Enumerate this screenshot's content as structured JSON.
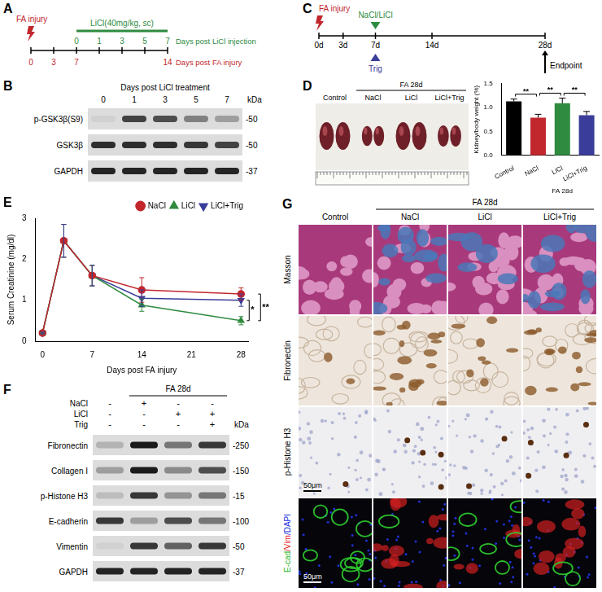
{
  "panels": {
    "A": {
      "letter": "A",
      "injury": "FA injury",
      "treatment": "LiCl(40mg/kg, sc)",
      "treatment_days": [
        "0",
        "1",
        "3",
        "5",
        "7"
      ],
      "treatment_axis": "Days post LiCl injection",
      "injury_days": [
        "0",
        "3",
        "7",
        "14"
      ],
      "injury_axis": "Days post FA injury"
    },
    "B": {
      "letter": "B",
      "header": "Days post LiCl treatment",
      "lanes": [
        "0",
        "1",
        "3",
        "5",
        "7"
      ],
      "unit": "kDa",
      "rows": [
        {
          "name": "p-GSK3β(S9)",
          "kda": "-50",
          "bands": [
            0.05,
            0.75,
            0.7,
            0.45,
            0.3
          ]
        },
        {
          "name": "GSK3β",
          "kda": "-50",
          "bands": [
            0.85,
            0.85,
            0.85,
            0.8,
            0.75
          ]
        },
        {
          "name": "GAPDH",
          "kda": "-37",
          "bands": [
            0.9,
            0.9,
            0.9,
            0.9,
            0.9
          ]
        }
      ]
    },
    "C": {
      "letter": "C",
      "injury": "FA injury",
      "treatment": "NaCl/LiCl",
      "inhibitor": "Trig",
      "days": [
        "0d",
        "3d",
        "7d",
        "14d",
        "28d"
      ],
      "endpoint": "Endpoint"
    },
    "D": {
      "letter": "D",
      "photo_labels": [
        "Control",
        "NaCl",
        "LiCl",
        "LiCl+Trig"
      ],
      "group_label": "FA 28d"
    },
    "E": {
      "letter": "E"
    },
    "F": {
      "letter": "F",
      "group_label": "FA 28d",
      "unit": "kDa",
      "conditions": [
        {
          "name": "NaCl",
          "signs": [
            "-",
            "+",
            "-",
            "-"
          ]
        },
        {
          "name": "LiCl",
          "signs": [
            "-",
            "-",
            "+",
            "+"
          ]
        },
        {
          "name": "Trig",
          "signs": [
            "-",
            "-",
            "-",
            "+"
          ]
        }
      ],
      "rows": [
        {
          "name": "Fibronectin",
          "kda": "-250",
          "bands": [
            0.2,
            0.95,
            0.5,
            0.8
          ]
        },
        {
          "name": "Collagen I",
          "kda": "-150",
          "bands": [
            0.3,
            0.95,
            0.4,
            0.7
          ]
        },
        {
          "name": "p-Histone H3",
          "kda": "-15",
          "bands": [
            0.15,
            0.8,
            0.35,
            0.5
          ]
        },
        {
          "name": "E-cadherin",
          "kda": "-100",
          "bands": [
            0.8,
            0.3,
            0.7,
            0.5
          ]
        },
        {
          "name": "Vimentin",
          "kda": "-50",
          "bands": [
            0.05,
            0.8,
            0.6,
            0.8
          ]
        },
        {
          "name": "GAPDH",
          "kda": "-37",
          "bands": [
            0.9,
            0.9,
            0.9,
            0.9
          ]
        }
      ]
    },
    "G": {
      "letter": "G",
      "columns": [
        "Control",
        "NaCl",
        "LiCl",
        "LiCl+Trig"
      ],
      "group_label": "FA 28d",
      "rows": [
        {
          "name": "Masson"
        },
        {
          "name": "Fibronectin"
        },
        {
          "name": "p-Histone H3",
          "scale_bar": "50μm"
        },
        {
          "name_parts": [
            {
              "text": "E-cad",
              "color": "#2db82d"
            },
            {
              "text": "/Vim",
              "color": "#e02020"
            },
            {
              "text": "/DAPI",
              "color": "#2030e0"
            }
          ],
          "scale_bar": "50μm"
        }
      ]
    }
  },
  "chart_data": [
    {
      "type": "bar",
      "y_label": "Kidney/body weight (%)",
      "categories": [
        "Control",
        "NaCl",
        "LiCl",
        "LiCl+Trig"
      ],
      "values": [
        1.13,
        0.79,
        1.09,
        0.84
      ],
      "errors": [
        0.05,
        0.07,
        0.11,
        0.08
      ],
      "colors": [
        "#000000",
        "#c1272d",
        "#2e8b3f",
        "#3a3d99"
      ],
      "ylim": [
        0,
        1.5
      ],
      "yticks": [
        {
          "value": 0,
          "label": "0.0"
        },
        {
          "value": 0.5,
          "label": "0.5"
        },
        {
          "value": 1,
          "label": "1.0"
        },
        {
          "value": 1.5,
          "label": "1.5"
        }
      ],
      "grid": false,
      "group_label": "FA 28d",
      "comparisons": [
        [
          "Control",
          "NaCl",
          "**"
        ],
        [
          "NaCl",
          "LiCl",
          "**"
        ],
        [
          "LiCl",
          "LiCl+Trig",
          "**"
        ]
      ]
    },
    {
      "type": "line",
      "x_label": "Days post FA injury",
      "y_label": "Serum Creatinine (mg/dl)",
      "x": [
        0,
        3,
        7,
        14,
        28
      ],
      "xlim": [
        -1,
        29
      ],
      "xticks": [
        0,
        7,
        14,
        21,
        28
      ],
      "ylim": [
        0,
        3
      ],
      "yticks": [
        0,
        1,
        2,
        3
      ],
      "grid": false,
      "legend": "upper right",
      "series": [
        {
          "name": "NaCl",
          "color": "#c1272d",
          "marker": "circle",
          "values": [
            0.2,
            2.45,
            1.6,
            1.25,
            1.15
          ],
          "errors": [
            0.02,
            0.4,
            0.25,
            0.3,
            0.15
          ]
        },
        {
          "name": "LiCl",
          "color": "#2e8b3f",
          "marker": "triangle",
          "values": [
            0.2,
            2.45,
            1.6,
            0.88,
            0.5
          ],
          "errors": [
            0.02,
            0.4,
            0.25,
            0.15,
            0.1
          ]
        },
        {
          "name": "LiCl+Trig",
          "color": "#3a3d99",
          "marker": "triangle-down",
          "values": [
            0.2,
            2.45,
            1.6,
            1.05,
            1.0
          ],
          "errors": [
            0.02,
            0.4,
            0.25,
            0.2,
            0.15
          ]
        }
      ],
      "comparisons": [
        [
          "LiCl",
          "LiCl+Trig",
          "*"
        ],
        [
          "NaCl",
          "LiCl",
          "**"
        ]
      ]
    }
  ]
}
